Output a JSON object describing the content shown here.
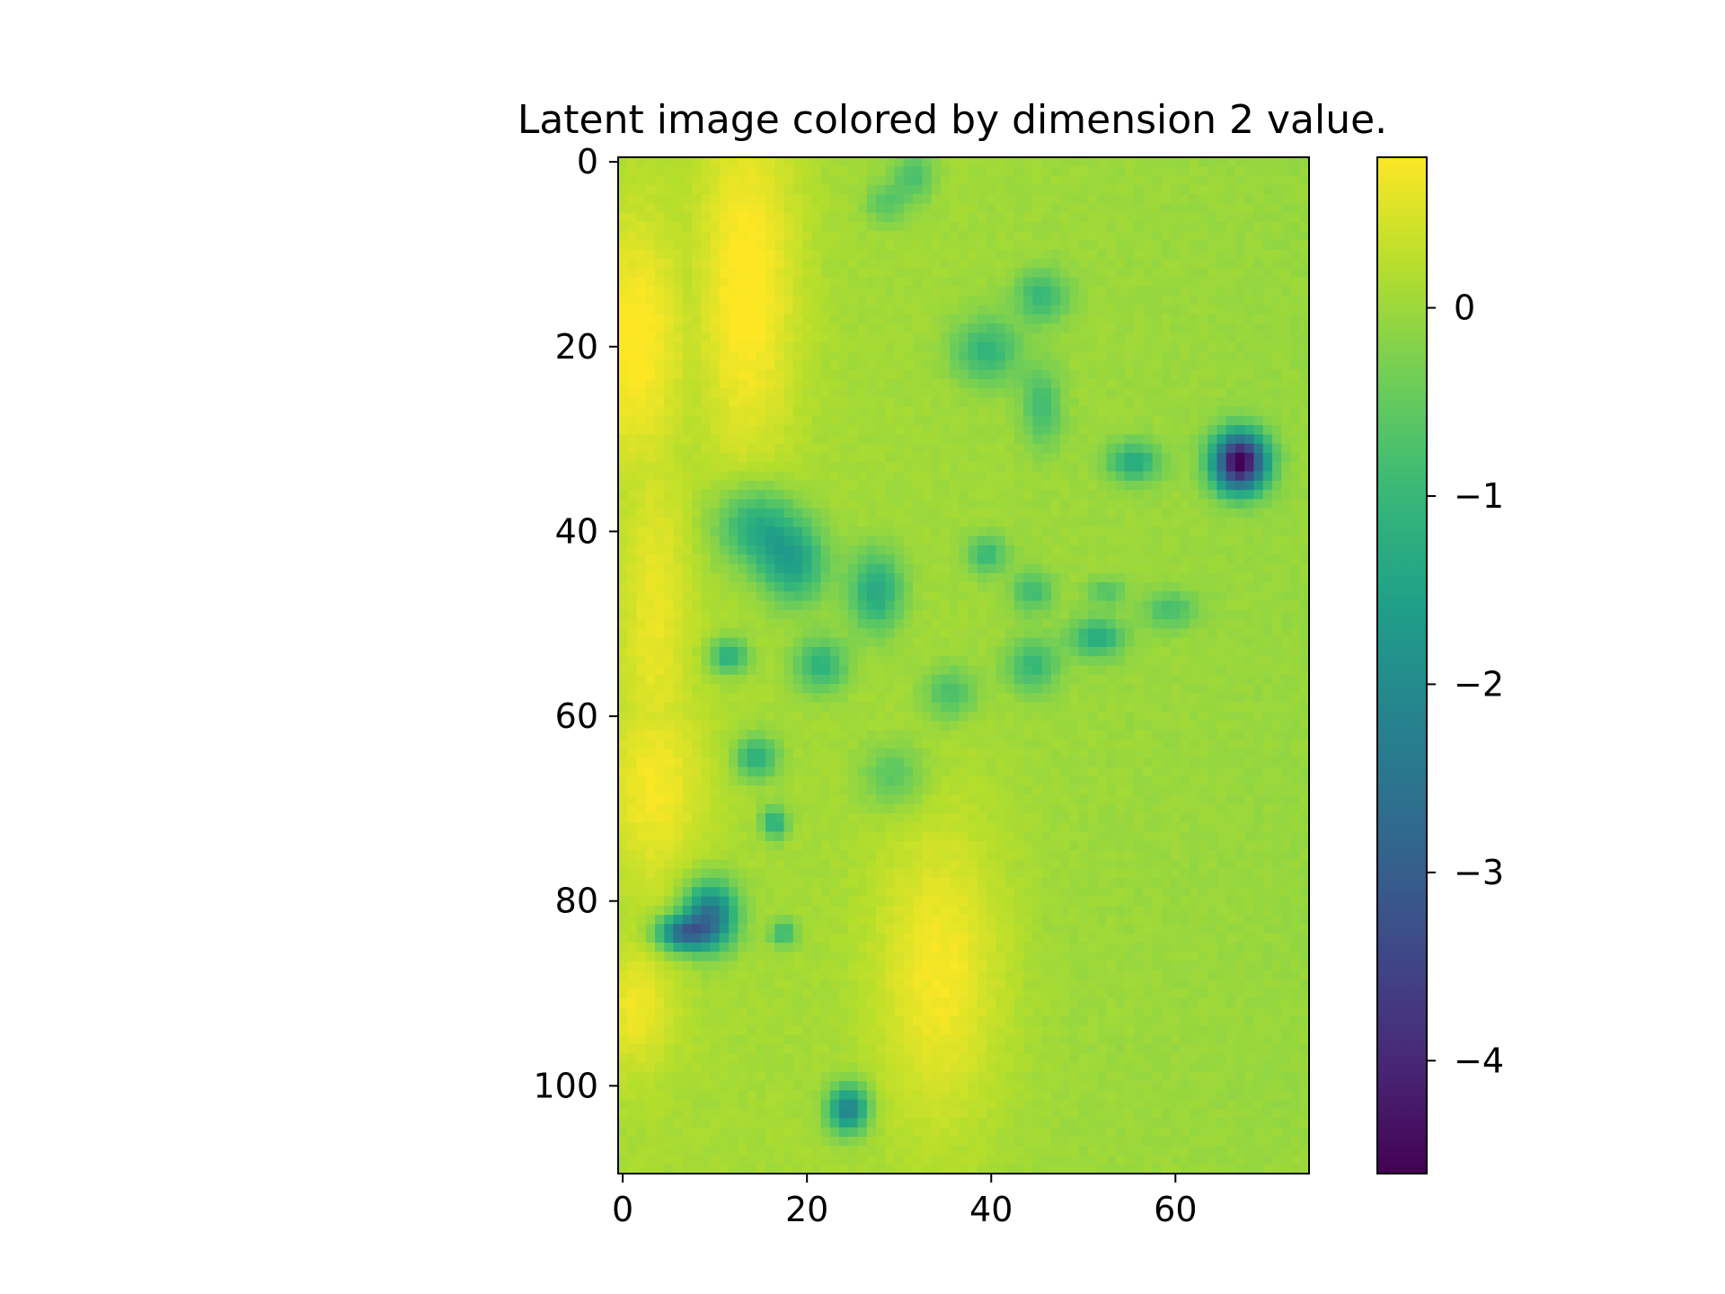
{
  "chart_data": {
    "type": "heatmap",
    "title": "Latent image colored by dimension 2 value.",
    "xlabel": "",
    "ylabel": "",
    "x_range": [
      0,
      75
    ],
    "y_range": [
      0,
      110
    ],
    "x_ticks": [
      0,
      20,
      40,
      60
    ],
    "y_ticks": [
      0,
      20,
      40,
      60,
      80,
      100
    ],
    "y_axis_inverted": true,
    "grid": false,
    "colormap": "viridis",
    "colorbar": {
      "range": [
        -4.6,
        0.8
      ],
      "ticks": [
        0,
        -1,
        -2,
        -3,
        -4
      ],
      "tick_labels": [
        "0",
        "−1",
        "−2",
        "−3",
        "−4"
      ]
    },
    "background_value": 0.1,
    "features": [
      {
        "kind": "yellow-band",
        "x": 2,
        "y": 20,
        "sx": 4,
        "sy": 10,
        "value": 0.75
      },
      {
        "kind": "yellow-band",
        "x": 14,
        "y": 14,
        "sx": 4,
        "sy": 14,
        "value": 0.8
      },
      {
        "kind": "yellow-band",
        "x": 4,
        "y": 50,
        "sx": 3,
        "sy": 14,
        "value": 0.55
      },
      {
        "kind": "yellow-band",
        "x": 4,
        "y": 68,
        "sx": 4,
        "sy": 8,
        "value": 0.65
      },
      {
        "kind": "yellow-band",
        "x": 2,
        "y": 92,
        "sx": 3,
        "sy": 5,
        "value": 0.6
      },
      {
        "kind": "yellow-band",
        "x": 35,
        "y": 88,
        "sx": 5,
        "sy": 12,
        "value": 0.72
      },
      {
        "kind": "blob",
        "x": 15,
        "y": 40,
        "sx": 3,
        "sy": 3,
        "value": -1.3
      },
      {
        "kind": "blob",
        "x": 19,
        "y": 44,
        "sx": 2.5,
        "sy": 3,
        "value": -1.4
      },
      {
        "kind": "blob",
        "x": 28,
        "y": 47,
        "sx": 2,
        "sy": 3,
        "value": -1.3
      },
      {
        "kind": "blob",
        "x": 40,
        "y": 21,
        "sx": 2.5,
        "sy": 2.5,
        "value": -1.0
      },
      {
        "kind": "blob",
        "x": 46,
        "y": 15,
        "sx": 2,
        "sy": 2,
        "value": -0.9
      },
      {
        "kind": "blob",
        "x": 67.5,
        "y": 33,
        "sx": 2,
        "sy": 2.2,
        "value": -4.6
      },
      {
        "kind": "blob",
        "x": 56,
        "y": 33,
        "sx": 2,
        "sy": 1.5,
        "value": -1.2
      },
      {
        "kind": "blob",
        "x": 10,
        "y": 82,
        "sx": 2,
        "sy": 2.5,
        "value": -2.5
      },
      {
        "kind": "blob",
        "x": 7,
        "y": 84,
        "sx": 2,
        "sy": 1.3,
        "value": -2.4
      },
      {
        "kind": "blob",
        "x": 25,
        "y": 103,
        "sx": 1.5,
        "sy": 1.8,
        "value": -2.2
      },
      {
        "kind": "blob",
        "x": 22,
        "y": 55,
        "sx": 2,
        "sy": 2,
        "value": -1.1
      },
      {
        "kind": "blob",
        "x": 12,
        "y": 54,
        "sx": 1.5,
        "sy": 1.3,
        "value": -1.2
      },
      {
        "kind": "blob",
        "x": 15,
        "y": 65,
        "sx": 1.6,
        "sy": 1.6,
        "value": -1.2
      },
      {
        "kind": "blob",
        "x": 52,
        "y": 52,
        "sx": 2,
        "sy": 1.5,
        "value": -1.2
      },
      {
        "kind": "blob",
        "x": 45,
        "y": 55,
        "sx": 2,
        "sy": 2,
        "value": -0.9
      },
      {
        "kind": "blob",
        "x": 36,
        "y": 58,
        "sx": 2,
        "sy": 2,
        "value": -0.7
      },
      {
        "kind": "blob",
        "x": 30,
        "y": 67,
        "sx": 2.5,
        "sy": 2.5,
        "value": -0.6
      },
      {
        "kind": "blob",
        "x": 45,
        "y": 47,
        "sx": 1.6,
        "sy": 1.6,
        "value": -0.8
      },
      {
        "kind": "blob",
        "x": 40,
        "y": 43,
        "sx": 1.5,
        "sy": 1.5,
        "value": -0.9
      },
      {
        "kind": "blob",
        "x": 60,
        "y": 49,
        "sx": 2,
        "sy": 1.5,
        "value": -0.7
      },
      {
        "kind": "blob",
        "x": 32,
        "y": 2,
        "sx": 1.5,
        "sy": 2,
        "value": -0.7
      },
      {
        "kind": "blob",
        "x": 29,
        "y": 5,
        "sx": 1.5,
        "sy": 1.5,
        "value": -0.6
      },
      {
        "kind": "blob",
        "x": 17,
        "y": 72,
        "sx": 1,
        "sy": 1.2,
        "value": -1.2
      },
      {
        "kind": "blob",
        "x": 18,
        "y": 84,
        "sx": 1,
        "sy": 1,
        "value": -1.0
      },
      {
        "kind": "blob",
        "x": 46,
        "y": 27,
        "sx": 1.5,
        "sy": 3,
        "value": -0.8
      },
      {
        "kind": "blob",
        "x": 53,
        "y": 47,
        "sx": 1.5,
        "sy": 1,
        "value": -0.6
      }
    ]
  }
}
